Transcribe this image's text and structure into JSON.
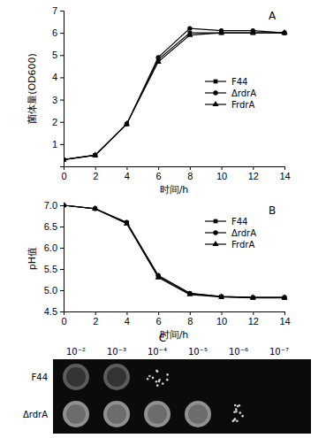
{
  "chart_data": [
    {
      "type": "line",
      "title": "A",
      "x_label": "时间/h",
      "y_label": "菌体量(OD600)",
      "x": [
        0,
        2,
        4,
        6,
        8,
        10,
        12,
        14
      ],
      "xlim": [
        0,
        14
      ],
      "xticks": [
        0,
        2,
        4,
        6,
        8,
        10,
        12,
        14
      ],
      "ylim": [
        0,
        7
      ],
      "yticks": [
        1,
        2,
        3,
        4,
        5,
        6,
        7
      ],
      "legend": "right",
      "grid": false,
      "series": [
        {
          "name": "F44",
          "color": "#000000",
          "marker": "square",
          "values": [
            0.3,
            0.5,
            1.9,
            4.8,
            6.0,
            6.0,
            6.0,
            6.0
          ]
        },
        {
          "name": "ΔrdrA",
          "color": "#000000",
          "marker": "circle",
          "values": [
            0.3,
            0.5,
            1.9,
            4.9,
            6.2,
            6.1,
            6.1,
            6.0
          ]
        },
        {
          "name": "FrdrA",
          "color": "#000000",
          "marker": "triangle",
          "values": [
            0.3,
            0.5,
            1.9,
            4.7,
            5.9,
            6.0,
            6.0,
            6.0
          ]
        }
      ]
    },
    {
      "type": "line",
      "title": "B",
      "x_label": "时间/h",
      "y_label": "pH值",
      "x": [
        0,
        2,
        4,
        6,
        8,
        10,
        12,
        14
      ],
      "xlim": [
        0,
        14
      ],
      "xticks": [
        0,
        2,
        4,
        6,
        8,
        10,
        12,
        14
      ],
      "ylim": [
        4.5,
        7.0
      ],
      "yticks": [
        4.5,
        {
          "value": 5,
          "label": "5.0"
        },
        5.5,
        {
          "value": 6,
          "label": "6.0"
        },
        6.5,
        {
          "value": 7,
          "label": "7.0"
        }
      ],
      "legend": "top right",
      "grid": false,
      "series": [
        {
          "name": "F44",
          "color": "#000000",
          "marker": "square",
          "values": [
            7.0,
            6.92,
            6.58,
            5.33,
            4.92,
            4.85,
            4.83,
            4.83
          ]
        },
        {
          "name": "ΔrdrA",
          "color": "#000000",
          "marker": "circle",
          "values": [
            7.0,
            6.92,
            6.6,
            5.35,
            4.93,
            4.85,
            4.83,
            4.83
          ]
        },
        {
          "name": "FrdrA",
          "color": "#000000",
          "marker": "triangle",
          "values": [
            7.0,
            6.92,
            6.57,
            5.3,
            4.9,
            4.84,
            4.82,
            4.82
          ]
        }
      ]
    }
  ],
  "spot_assay": {
    "title": "C",
    "dilutions": [
      "10⁻²",
      "10⁻³",
      "10⁻⁴",
      "10⁻⁵",
      "10⁻⁶",
      "10⁻⁷"
    ],
    "strains": [
      "F44",
      "ΔrdrA"
    ]
  }
}
